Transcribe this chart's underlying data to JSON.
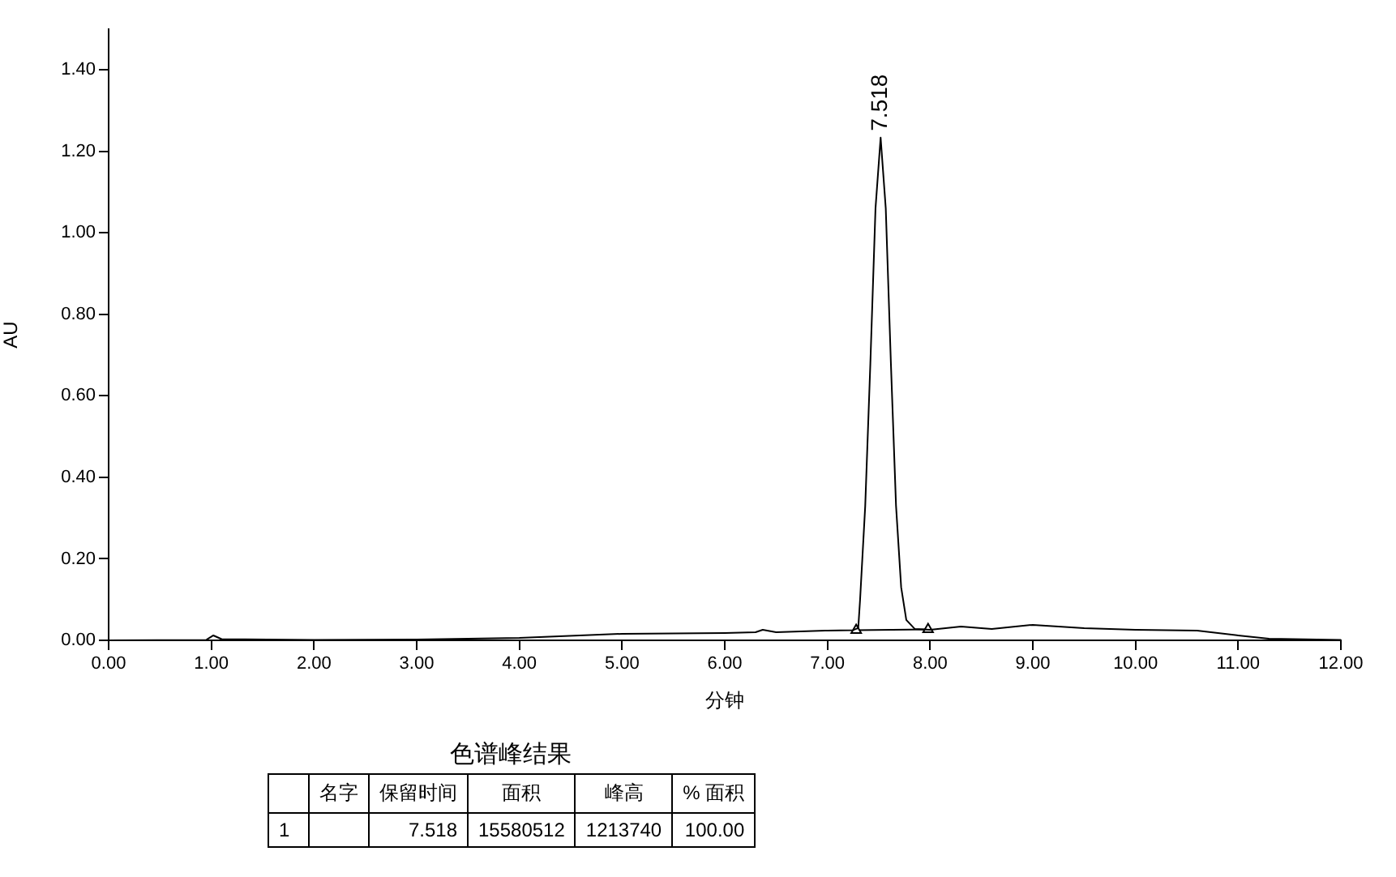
{
  "chart_data": {
    "type": "line",
    "xlabel": "分钟",
    "ylabel": "AU",
    "xlim": [
      0,
      12
    ],
    "ylim": [
      0,
      1.5
    ],
    "xticks": [
      {
        "value": 0,
        "label": "0.00"
      },
      {
        "value": 1,
        "label": "1.00"
      },
      {
        "value": 2,
        "label": "2.00"
      },
      {
        "value": 3,
        "label": "3.00"
      },
      {
        "value": 4,
        "label": "4.00"
      },
      {
        "value": 5,
        "label": "5.00"
      },
      {
        "value": 6,
        "label": "6.00"
      },
      {
        "value": 7,
        "label": "7.00"
      },
      {
        "value": 8,
        "label": "8.00"
      },
      {
        "value": 9,
        "label": "9.00"
      },
      {
        "value": 10,
        "label": "10.00"
      },
      {
        "value": 11,
        "label": "11.00"
      },
      {
        "value": 12,
        "label": "12.00"
      }
    ],
    "yticks": [
      {
        "value": 0,
        "label": "0.00"
      },
      {
        "value": 0.2,
        "label": "0.20"
      },
      {
        "value": 0.4,
        "label": "0.40"
      },
      {
        "value": 0.6,
        "label": "0.60"
      },
      {
        "value": 0.8,
        "label": "0.80"
      },
      {
        "value": 1.0,
        "label": "1.00"
      },
      {
        "value": 1.2,
        "label": "1.20"
      },
      {
        "value": 1.4,
        "label": "1.40"
      }
    ],
    "grid": false,
    "legend": false,
    "marker": "none",
    "line_style": "solid",
    "series": [
      {
        "color": "#000000",
        "x": [
          0,
          0.95,
          1.02,
          1.1,
          2,
          3,
          4,
          5,
          6,
          6.3,
          6.37,
          6.5,
          7,
          7.25,
          7.3,
          7.318,
          7.368,
          7.418,
          7.468,
          7.518,
          7.568,
          7.618,
          7.668,
          7.718,
          7.768,
          7.85,
          8,
          8.3,
          8.6,
          9,
          9.5,
          10,
          10.6,
          11,
          11.3,
          12
        ],
        "values": [
          0,
          0.001,
          0.012,
          0.003,
          0.001,
          0.002,
          0.006,
          0.016,
          0.018,
          0.02,
          0.026,
          0.02,
          0.024,
          0.025,
          0.03,
          0.1,
          0.33,
          0.68,
          1.06,
          1.234,
          1.06,
          0.68,
          0.33,
          0.13,
          0.05,
          0.028,
          0.026,
          0.034,
          0.028,
          0.038,
          0.03,
          0.026,
          0.024,
          0.012,
          0.004,
          0.001
        ]
      },
      {
        "color": "#000000",
        "marker": "triangle",
        "x": [
          7.28,
          7.98
        ],
        "values": [
          0.025,
          0.027
        ]
      }
    ],
    "annotations": [
      {
        "text": "7.518",
        "x": 7.518,
        "y": 1.234
      },
      "色谱峰结果",
      "名字",
      "保留时间",
      "面积",
      "峰高",
      "% 面积",
      "1",
      "7.518",
      "15580512",
      "1213740",
      "100.00"
    ]
  }
}
